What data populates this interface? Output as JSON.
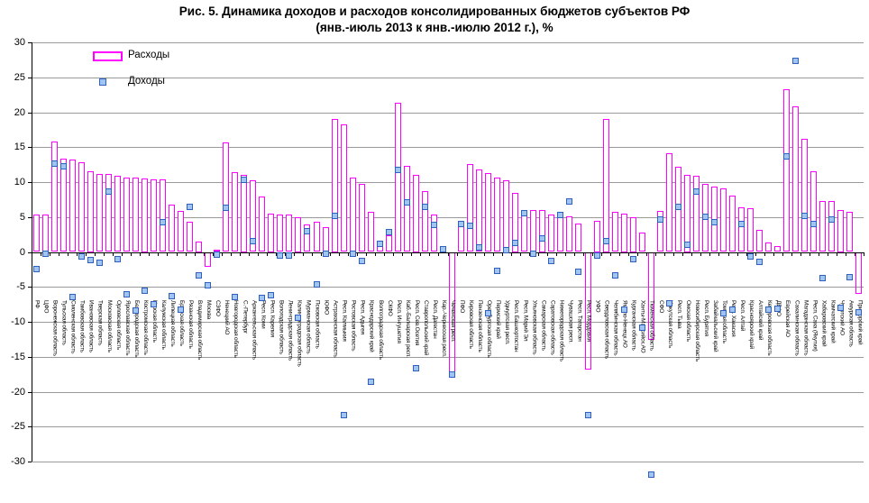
{
  "title": {
    "line1": "Рис. 5. Динамика доходов и расходов консолидированных бюджетов субъектов РФ",
    "line2": "(янв.-июль 2013 к янв.-июлю 2012 г.), %"
  },
  "legend": {
    "expenses": "Расходы",
    "incomes": "Доходы"
  },
  "colors": {
    "expenses_stroke": "#FF00FF",
    "incomes_stroke": "#3060C0",
    "incomes_fill": "#9FC5F0",
    "grid": "#9a9a9a",
    "axis": "#000000"
  },
  "y_axis": {
    "min": -30,
    "max": 30,
    "step": 5,
    "ticks": [
      30,
      25,
      20,
      15,
      10,
      5,
      0,
      -5,
      -10,
      -15,
      -20,
      -25,
      -30
    ]
  },
  "chart_data": {
    "type": "bar",
    "title": "Рис. 5. Динамика доходов и расходов консолидированных бюджетов субъектов РФ (янв.-июль 2013 к янв.-июлю 2012 г.), %",
    "xlabel": "",
    "ylabel": "%",
    "ylim": [
      -30,
      30
    ],
    "grid": true,
    "legend_position": "top-left",
    "categories": [
      "РФ",
      "ЦФО",
      "Воронежская область",
      "Тульская область",
      "Смоленская область",
      "Тамбовская область",
      "Ивановская область",
      "Тверская область",
      "Московская область",
      "Орловская область",
      "Ярославская область",
      "Белгородская область",
      "Костромская область",
      "Курская область",
      "Калужская область",
      "Липецкая область",
      "Брянская область",
      "Рязанская область",
      "Владимирская область",
      "Москва",
      "СЗФО",
      "Ненецкий АО",
      "Новгородская область",
      "С.-Петербург",
      "Архангельская область",
      "Респ. Коми",
      "Респ. Карелия",
      "Вологодская область",
      "Ленинградская область",
      "Калининградская область",
      "Мурманская область",
      "Псковская область",
      "ЮФО",
      "Астраханская область",
      "Респ. Калмыкия",
      "Ростовская область",
      "Респ. Адыгея",
      "Краснодарский край",
      "Волгоградская область",
      "СКФО",
      "Респ. Ингушетия",
      "Каб.-Балкарская респ.",
      "Респ. Сев.Осетия",
      "Ставропольский край",
      "Респ. Дагестан",
      "Кар.-Черкесская респ.",
      "Чеченская респ.",
      "ПФО",
      "Кировская область",
      "Пензенская область",
      "Оренбургская область",
      "Пермский край",
      "Удмуртская респ.",
      "Респ. Башкортостан",
      "Респ. Марий Эл",
      "Ульяновская область",
      "Самарская область",
      "Саратовская область",
      "Нижегородская область",
      "Чувашская респ.",
      "Респ. Татарстан",
      "Респ. Мордовия",
      "УФО",
      "Свердловская область",
      "Челябинская область",
      "Ямало-Ненецк.АО",
      "Курганская область",
      "Ханты-Мансийск.АО",
      "Тюменская область",
      "СФО",
      "Иркутская область",
      "Респ. Тыва",
      "Омская область",
      "Новосибирская область",
      "Респ. Бурятия",
      "Забайкальский край",
      "Томская область",
      "Респ. Хакасия",
      "Респ. Алтай",
      "Красноярский край",
      "Алтайский край",
      "Кемеровская область",
      "ДВФО",
      "Еврейская АО",
      "Сахалинская область",
      "Магаданская область",
      "Респ. Саха (Якутия)",
      "Хабаровский край",
      "Камчатский край",
      "Чукотский АО",
      "Амурская область",
      "Приморский край"
    ],
    "series": [
      {
        "name": "Расходы",
        "type": "bar",
        "values": [
          5.4,
          5.4,
          15.8,
          13.4,
          13.2,
          12.9,
          11.5,
          11.2,
          11.1,
          10.9,
          10.7,
          10.6,
          10.5,
          10.4,
          10.4,
          6.8,
          5.9,
          4.3,
          1.5,
          -2.1,
          0.3,
          15.7,
          11.4,
          11.0,
          10.2,
          7.9,
          5.5,
          5.4,
          5.3,
          5.0,
          3.9,
          4.3,
          3.6,
          19.0,
          18.2,
          10.7,
          9.8,
          5.7,
          0.9,
          2.4,
          21.4,
          12.3,
          11.0,
          8.7,
          5.3,
          0.9,
          -17.3,
          4.2,
          12.6,
          11.8,
          11.3,
          10.6,
          10.2,
          8.5,
          5.8,
          6.0,
          6.0,
          5.3,
          5.3,
          5.1,
          4.1,
          -16.9,
          4.5,
          19.0,
          5.8,
          5.5,
          5.0,
          2.8,
          -12.6,
          5.9,
          14.1,
          12.2,
          11.0,
          10.9,
          9.7,
          9.4,
          9.1,
          8.1,
          6.4,
          6.3,
          3.2,
          1.3,
          0.9,
          23.3,
          20.9,
          16.2,
          11.6,
          7.3,
          7.3,
          6.0,
          5.8,
          -6.0
        ]
      },
      {
        "name": "Доходы",
        "type": "scatter",
        "values": [
          -2.5,
          -0.3,
          12.6,
          12.3,
          -6.5,
          -0.6,
          -1.2,
          -1.5,
          8.7,
          -1.0,
          -6.0,
          -8.4,
          -5.5,
          -7.5,
          4.3,
          -6.3,
          -8.3,
          6.4,
          -3.4,
          -4.8,
          -0.4,
          6.3,
          -6.5,
          10.3,
          1.5,
          -6.6,
          -6.2,
          -0.5,
          -0.5,
          -9.4,
          3.0,
          -4.6,
          -0.3,
          5.2,
          -23.3,
          -0.2,
          -1.3,
          -18.6,
          1.1,
          2.8,
          11.7,
          7.1,
          -16.7,
          6.5,
          3.9,
          0.4,
          -17.5,
          4.0,
          3.8,
          0.7,
          -8.8,
          -2.7,
          0.3,
          1.3,
          5.5,
          -0.2,
          1.9,
          -1.3,
          5.3,
          7.2,
          -2.9,
          -23.3,
          -0.5,
          1.6,
          -3.4,
          -8.3,
          -1.0,
          -10.9,
          -31.9,
          4.7,
          -7.3,
          6.4,
          1.0,
          8.7,
          5.0,
          4.2,
          -8.8,
          -8.2,
          4.0,
          -0.7,
          -1.4,
          -8.3,
          -8.1,
          13.7,
          27.3,
          5.2,
          4.0,
          -3.7,
          4.7,
          -8.0,
          -3.6,
          -8.6
        ]
      }
    ]
  }
}
